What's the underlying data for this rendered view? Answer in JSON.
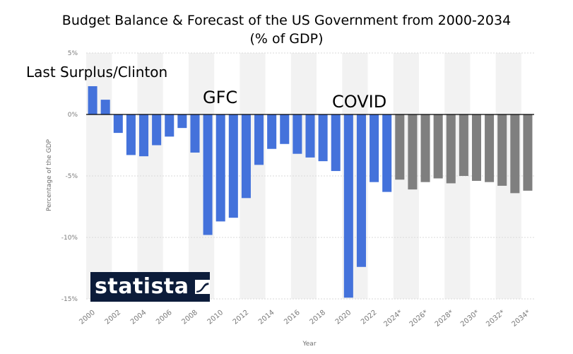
{
  "chart_data": {
    "type": "bar",
    "title": "Budget Balance & Forecast of the US Government from 2000-2034",
    "subtitle": "(% of GDP)",
    "xlabel": "Year",
    "ylabel": "Percentage of the GDP",
    "ylim": [
      -15,
      5
    ],
    "yticks": [
      5,
      0,
      -5,
      -10,
      -15
    ],
    "ytick_labels": [
      "5%",
      "0%",
      "-5%",
      "-10%",
      "-15%"
    ],
    "xtick_labels": [
      "2000",
      "2002",
      "2004",
      "2006",
      "2008",
      "2010",
      "2012",
      "2014",
      "2016",
      "2018",
      "2020",
      "2022",
      "2024*",
      "2026*",
      "2028*",
      "2030*",
      "2032*",
      "2034*"
    ],
    "categories": [
      "2000",
      "2001",
      "2002",
      "2003",
      "2004",
      "2005",
      "2006",
      "2007",
      "2008",
      "2009",
      "2010",
      "2011",
      "2012",
      "2013",
      "2014",
      "2015",
      "2016",
      "2017",
      "2018",
      "2019",
      "2020",
      "2021",
      "2022",
      "2023",
      "2024*",
      "2025*",
      "2026*",
      "2027*",
      "2028*",
      "2029*",
      "2030*",
      "2031*",
      "2032*",
      "2033*",
      "2034*"
    ],
    "values": [
      2.3,
      1.2,
      -1.5,
      -3.3,
      -3.4,
      -2.5,
      -1.8,
      -1.1,
      -3.1,
      -9.8,
      -8.7,
      -8.4,
      -6.8,
      -4.1,
      -2.8,
      -2.4,
      -3.2,
      -3.5,
      -3.8,
      -4.6,
      -14.9,
      -12.4,
      -5.5,
      -6.3,
      -5.3,
      -6.1,
      -5.5,
      -5.2,
      -5.6,
      -5.0,
      -5.4,
      -5.5,
      -5.8,
      -6.4,
      -6.2
    ],
    "forecast_start_index": 24,
    "colors": {
      "actual": "#4472db",
      "forecast": "#7f7f7f",
      "band": "#f2f2f2",
      "grid": "#d9d9d9",
      "zero": "#000000"
    },
    "grid": true,
    "annotations": [
      "Last Surplus/Clinton",
      "GFC",
      "COVID"
    ]
  },
  "logo": {
    "text": "statista"
  }
}
